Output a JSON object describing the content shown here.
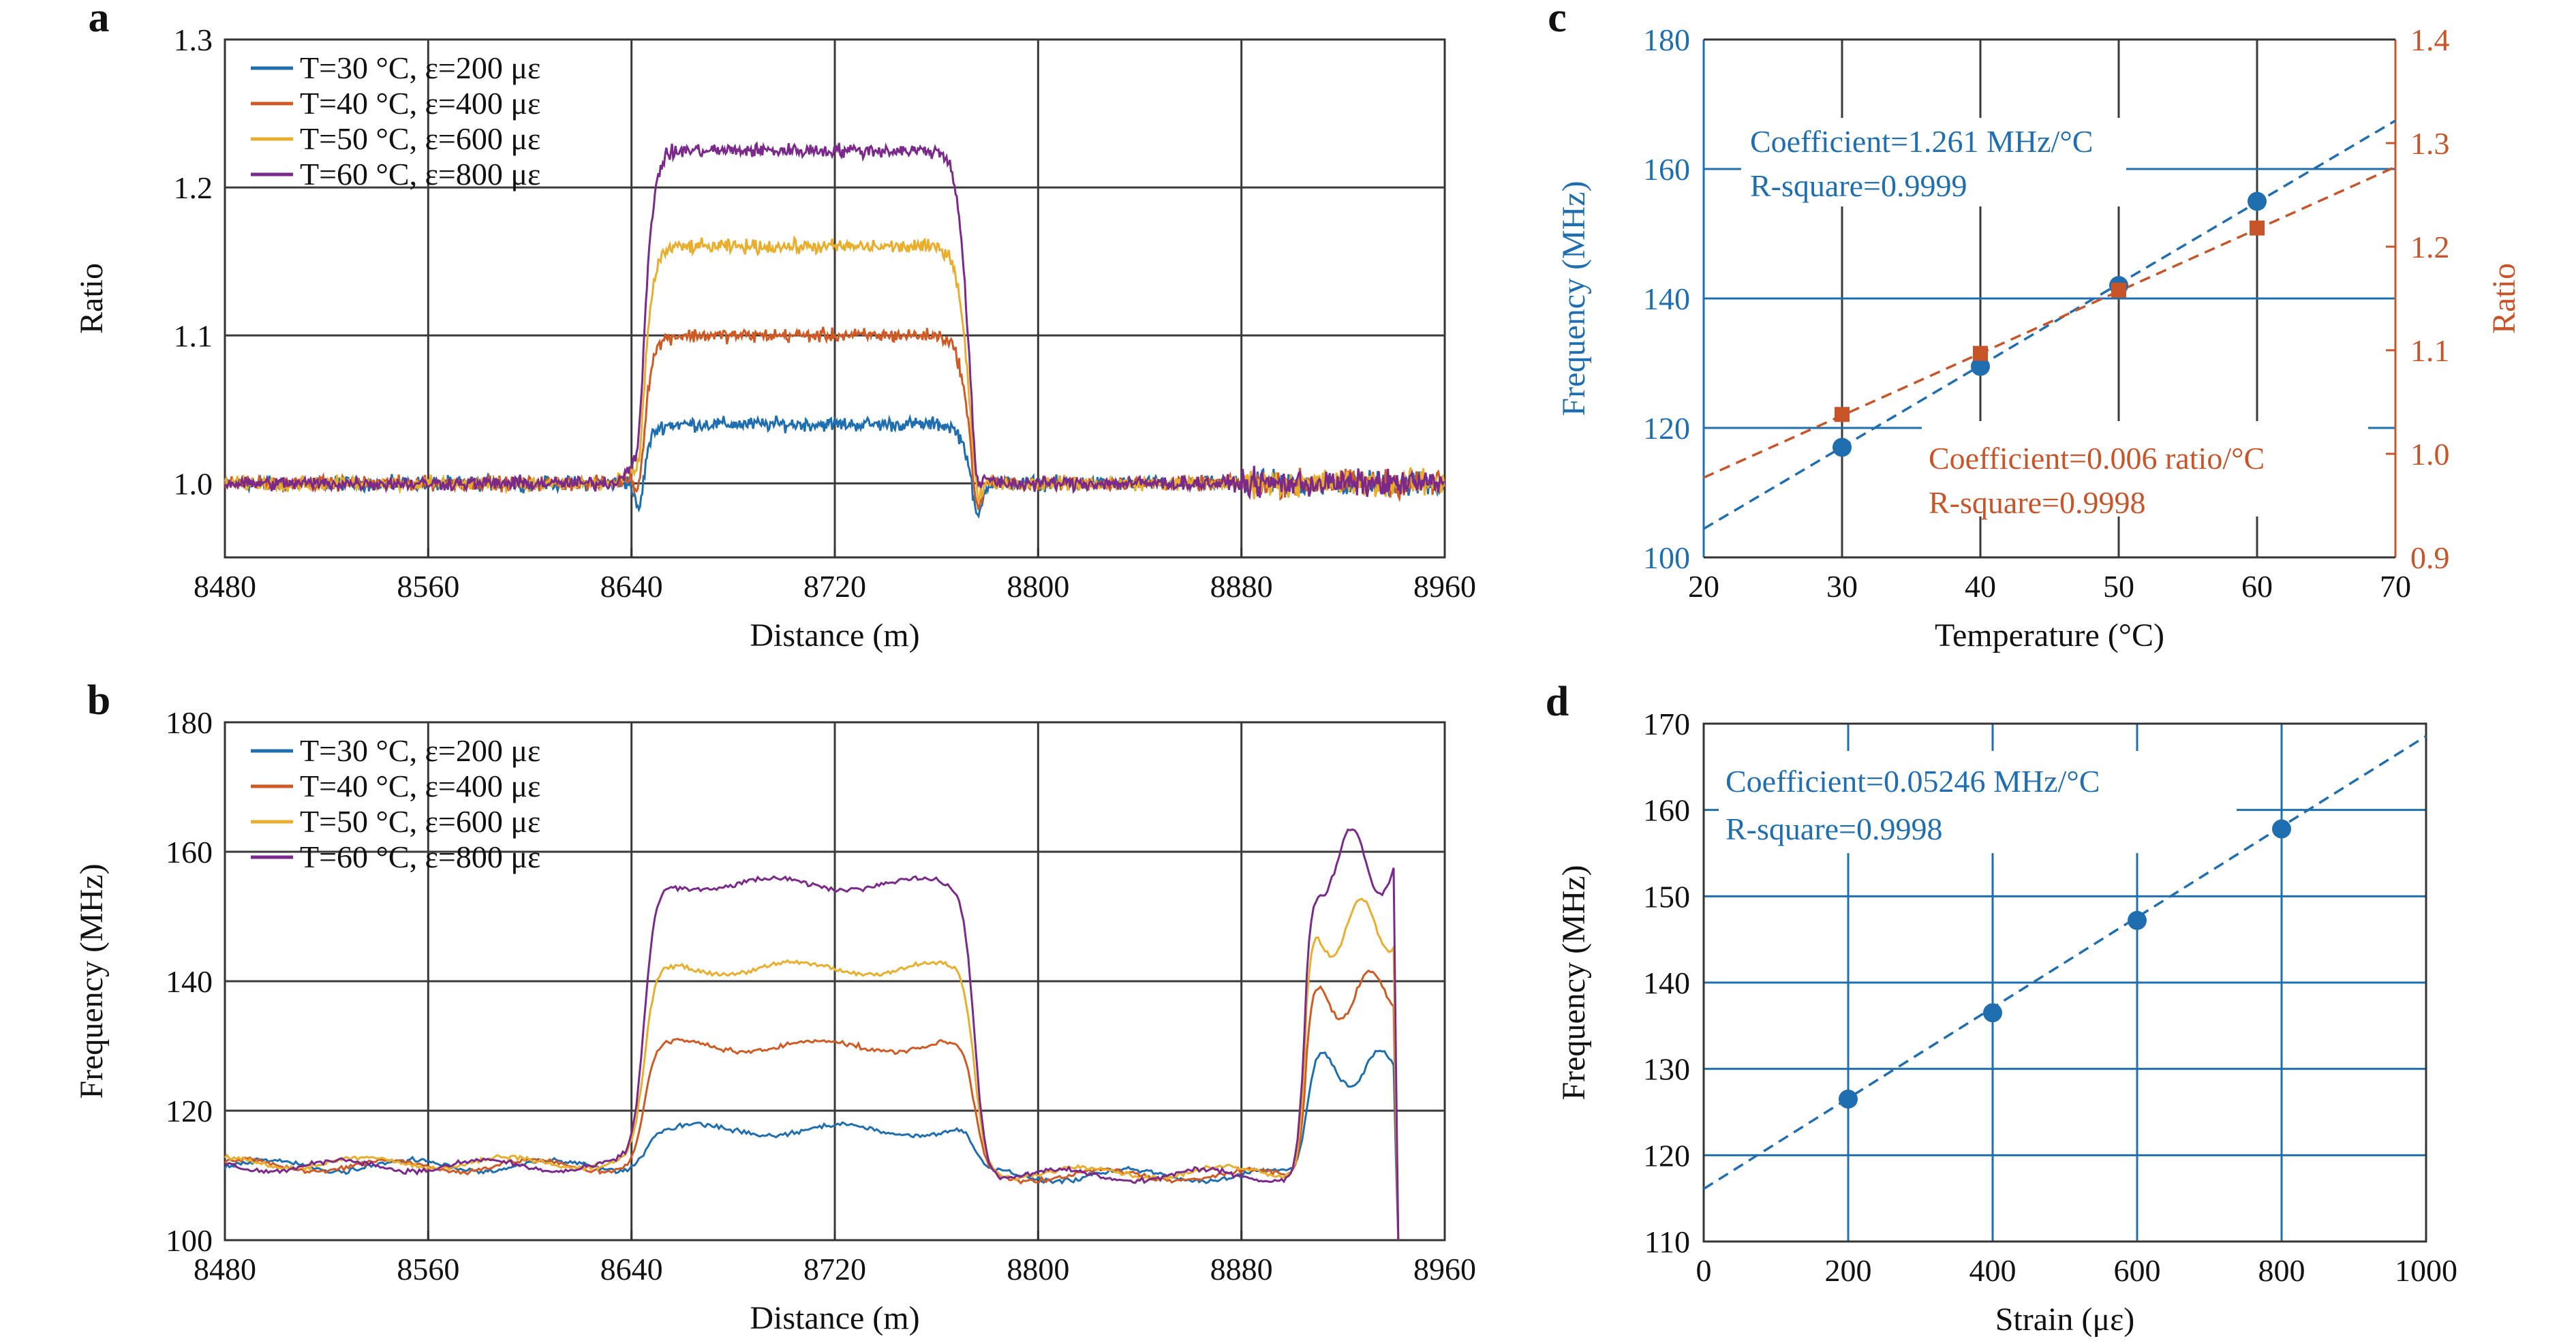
{
  "figure": {
    "panels": [
      {
        "id": "a",
        "label": "a",
        "xlabel": "Distance (m)",
        "ylabel": "Ratio",
        "xlim": [
          8480,
          8960
        ],
        "ylim": [
          0.95,
          1.3
        ],
        "xticks": [
          "8480",
          "8560",
          "8640",
          "8720",
          "8800",
          "8880",
          "8960"
        ],
        "yticks": [
          "1.0",
          "1.1",
          "1.2",
          "1.3"
        ],
        "legend": [
          "T=30 °C, ε=200 με",
          "T=40 °C, ε=400 με",
          "T=50 °C, ε=600 με",
          "T=60 °C, ε=800 με"
        ]
      },
      {
        "id": "b",
        "label": "b",
        "xlabel": "Distance (m)",
        "ylabel": "Frequency (MHz)",
        "xlim": [
          8480,
          8960
        ],
        "ylim": [
          100,
          180
        ],
        "xticks": [
          "8480",
          "8560",
          "8640",
          "8720",
          "8800",
          "8880",
          "8960"
        ],
        "yticks": [
          "100",
          "120",
          "140",
          "160",
          "180"
        ],
        "legend": [
          "T=30 °C, ε=200 με",
          "T=40 °C, ε=400 με",
          "T=50 °C, ε=600 με",
          "T=60 °C, ε=800 με"
        ]
      },
      {
        "id": "c",
        "label": "c",
        "xlabel": "Temperature (°C)",
        "ylabel_left": "Frequency (MHz)",
        "ylabel_right": "Ratio",
        "xlim": [
          20,
          70
        ],
        "ylim_left": [
          100,
          180
        ],
        "ylim_right": [
          0.9,
          1.4
        ],
        "xticks": [
          "20",
          "30",
          "40",
          "50",
          "60",
          "70"
        ],
        "yticks_left": [
          "100",
          "120",
          "140",
          "160",
          "180"
        ],
        "yticks_right": [
          "0.9",
          "1.0",
          "1.1",
          "1.2",
          "1.3",
          "1.4"
        ],
        "annotation_freq": [
          "Coefficient=1.261 MHz/°C",
          "R-square=0.9999"
        ],
        "annotation_ratio": [
          "Coefficient=0.006 ratio/°C",
          "R-square=0.9998"
        ]
      },
      {
        "id": "d",
        "label": "d",
        "xlabel": "Strain (με)",
        "ylabel": "Frequency (MHz)",
        "xlim": [
          0,
          1000
        ],
        "ylim": [
          110,
          170
        ],
        "xticks": [
          "0",
          "200",
          "400",
          "600",
          "800",
          "1000"
        ],
        "yticks": [
          "110",
          "120",
          "130",
          "140",
          "150",
          "160",
          "170"
        ],
        "annotation": [
          "Coefficient=0.05246 MHz/°C",
          "R-square=0.9998"
        ]
      }
    ]
  },
  "colors": {
    "series": [
      "#1f6fb0",
      "#d05a24",
      "#e8ae2c",
      "#7b2a8c"
    ],
    "blue_axis": "#1f6fb0",
    "orange_axis": "#c8552a",
    "grid_dark": "#3a3a3a"
  },
  "chart_data": [
    {
      "panel": "a",
      "type": "line",
      "x_range": [
        8480,
        8960
      ],
      "series": [
        {
          "name": "T=30 °C, ε=200 με",
          "profile": {
            "baseline": 1.0,
            "plateau": 1.04,
            "start_m": 8645,
            "end_m": 8772,
            "noise": 0.007
          }
        },
        {
          "name": "T=40 °C, ε=400 με",
          "profile": {
            "baseline": 1.0,
            "plateau": 1.1,
            "start_m": 8645,
            "end_m": 8772,
            "noise": 0.007
          }
        },
        {
          "name": "T=50 °C, ε=600 με",
          "profile": {
            "baseline": 1.0,
            "plateau": 1.16,
            "start_m": 8645,
            "end_m": 8772,
            "noise": 0.007
          }
        },
        {
          "name": "T=60 °C, ε=800 με",
          "profile": {
            "baseline": 1.0,
            "plateau": 1.225,
            "start_m": 8645,
            "end_m": 8772,
            "noise": 0.007
          }
        }
      ]
    },
    {
      "panel": "b",
      "type": "line",
      "x_range": [
        8480,
        8942
      ],
      "series": [
        {
          "name": "T=30 °C, ε=200 με",
          "profile": {
            "baseline": 111.5,
            "plateau": 117,
            "start_m": 8645,
            "end_m": 8775,
            "baseline2": 110,
            "end_segment_level": 127,
            "end_start_m": 8905,
            "end_m2": 8940,
            "noise": 0.7
          }
        },
        {
          "name": "T=40 °C, ε=400 με",
          "profile": {
            "baseline": 111.5,
            "plateau": 130,
            "start_m": 8645,
            "end_m": 8775,
            "baseline2": 110,
            "end_segment_level": 138,
            "end_start_m": 8905,
            "end_m2": 8940,
            "noise": 0.7
          }
        },
        {
          "name": "T=50 °C, ε=600 με",
          "profile": {
            "baseline": 112,
            "plateau": 142,
            "start_m": 8645,
            "end_m": 8775,
            "baseline2": 110.5,
            "end_segment_level": 148,
            "end_start_m": 8905,
            "end_m2": 8940,
            "noise": 0.7
          }
        },
        {
          "name": "T=60 °C, ε=800 με",
          "profile": {
            "baseline": 111.5,
            "plateau": 155,
            "start_m": 8645,
            "end_m": 8775,
            "baseline2": 110,
            "end_segment_level": 158,
            "end_start_m": 8905,
            "end_m2": 8940,
            "noise": 0.7
          }
        }
      ]
    },
    {
      "panel": "c",
      "type": "scatter",
      "x": [
        30,
        40,
        50,
        60
      ],
      "series": [
        {
          "axis": "left",
          "values": [
            117,
            129.5,
            142,
            155
          ],
          "fit": {
            "slope": 1.261,
            "intercept": 79.2
          }
        },
        {
          "axis": "right",
          "values": [
            1.038,
            1.097,
            1.158,
            1.218
          ],
          "fit": {
            "slope": 0.006,
            "intercept": 0.857
          }
        }
      ]
    },
    {
      "panel": "d",
      "type": "scatter",
      "x": [
        200,
        400,
        600,
        800
      ],
      "series": [
        {
          "values": [
            126.5,
            136.5,
            147.2,
            157.8
          ],
          "fit": {
            "slope": 0.05246,
            "intercept": 116.1
          }
        }
      ]
    }
  ]
}
